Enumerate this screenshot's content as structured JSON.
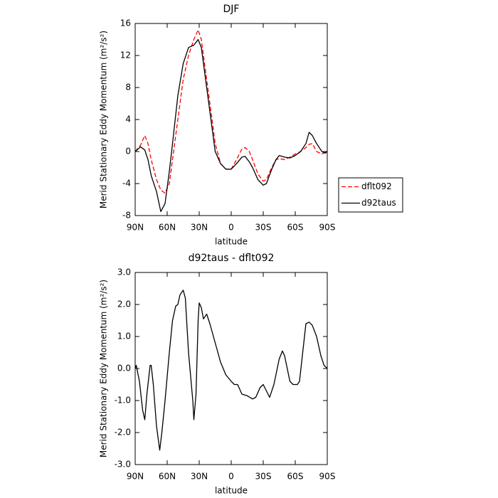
{
  "chart_data": [
    {
      "type": "line",
      "title": "DJF",
      "x_label": "latitude",
      "y_label": "Merid Stationary Eddy Momentum (m²/s²)",
      "x": [
        90,
        85,
        81,
        78,
        75,
        70,
        66,
        62,
        58,
        55,
        50,
        45,
        40,
        35,
        31,
        28,
        25,
        20,
        15,
        10,
        5,
        0,
        -5,
        -10,
        -13,
        -17,
        -20,
        -25,
        -30,
        -33,
        -38,
        -42,
        -45,
        -50,
        -55,
        -60,
        -65,
        -70,
        -73,
        -76,
        -80,
        -85,
        -88,
        -90
      ],
      "series": [
        {
          "name": "dflt092",
          "color": "#ff0000",
          "style": "dashed",
          "values": [
            0,
            0.8,
            2.0,
            1.0,
            -1,
            -3.5,
            -4.8,
            -5.2,
            -4,
            -1,
            4,
            9,
            12,
            14,
            15.2,
            14,
            11,
            6,
            1,
            -1.5,
            -2.2,
            -2.2,
            -1,
            0.3,
            0.5,
            0,
            -1,
            -2.8,
            -3.7,
            -3.5,
            -2,
            -1,
            -0.9,
            -1,
            -0.7,
            -0.3,
            0,
            0.5,
            0.9,
            1.0,
            0,
            -0.3,
            -0.1,
            0
          ]
        },
        {
          "name": "d92taus",
          "color": "#000000",
          "style": "solid",
          "values": [
            0,
            0.6,
            0.2,
            -1,
            -3,
            -5,
            -7.5,
            -6.5,
            -2.5,
            1,
            7,
            11,
            13,
            13.3,
            14,
            13,
            10,
            5,
            0,
            -1.5,
            -2.2,
            -2.2,
            -1.5,
            -0.7,
            -0.6,
            -1.3,
            -2,
            -3.5,
            -4.2,
            -4,
            -2.2,
            -1,
            -0.5,
            -0.7,
            -0.8,
            -0.5,
            0,
            1,
            2.4,
            2,
            1,
            0,
            -0.2,
            0
          ]
        }
      ],
      "xlim": [
        90,
        -90
      ],
      "xticks": [
        {
          "value": 90,
          "label": "90N"
        },
        {
          "value": 60,
          "label": "60N"
        },
        {
          "value": 30,
          "label": "30N"
        },
        0,
        {
          "value": -30,
          "label": "30S"
        },
        {
          "value": -60,
          "label": "60S"
        },
        {
          "value": -90,
          "label": "90S"
        }
      ],
      "ylim": [
        -8,
        16
      ],
      "yticks": [
        -8,
        -4,
        0,
        4,
        8,
        12,
        16
      ],
      "legend": "right"
    },
    {
      "type": "line",
      "title": "d92taus - dflt092",
      "x_label": "latitude",
      "y_label": "Merid Stationary Eddy Momentum (m²/s²)",
      "x": [
        90,
        89,
        86,
        83,
        81,
        79,
        76,
        75,
        73,
        70,
        67,
        65,
        62,
        58,
        55,
        52,
        50,
        48,
        45,
        43,
        40,
        36,
        35,
        33,
        31,
        30,
        28,
        26,
        23,
        20,
        15,
        10,
        5,
        0,
        -3,
        -6,
        -10,
        -15,
        -20,
        -23,
        -27,
        -30,
        -33,
        -36,
        -40,
        -45,
        -48,
        -50,
        -55,
        -58,
        -62,
        -64,
        -67,
        -70,
        -73,
        -76,
        -80,
        -84,
        -87,
        -90
      ],
      "series": [
        {
          "name": "d92taus - dflt092",
          "color": "#000000",
          "style": "solid",
          "values": [
            0,
            0.1,
            -0.4,
            -1.3,
            -1.6,
            -0.8,
            0.1,
            0.1,
            -0.5,
            -1.8,
            -2.55,
            -2,
            -1,
            0.5,
            1.5,
            1.95,
            2.0,
            2.3,
            2.45,
            2.2,
            0.5,
            -1,
            -1.6,
            -0.8,
            1.5,
            2.05,
            1.9,
            1.55,
            1.7,
            1.4,
            0.8,
            0.2,
            -0.2,
            -0.4,
            -0.5,
            -0.5,
            -0.8,
            -0.85,
            -0.95,
            -0.9,
            -0.6,
            -0.5,
            -0.7,
            -0.9,
            -0.5,
            0.3,
            0.55,
            0.4,
            -0.4,
            -0.5,
            -0.5,
            -0.4,
            0.5,
            1.4,
            1.45,
            1.35,
            1.0,
            0.4,
            0.1,
            0
          ]
        }
      ],
      "xlim": [
        90,
        -90
      ],
      "xticks": [
        {
          "value": 90,
          "label": "90N"
        },
        {
          "value": 60,
          "label": "60N"
        },
        {
          "value": 30,
          "label": "30N"
        },
        0,
        {
          "value": -30,
          "label": "30S"
        },
        {
          "value": -60,
          "label": "60S"
        },
        {
          "value": -90,
          "label": "90S"
        }
      ],
      "ylim": [
        -3,
        3
      ],
      "yticks": [
        {
          "value": -3,
          "label": "-3.0"
        },
        {
          "value": -2,
          "label": "-2.0"
        },
        {
          "value": -1,
          "label": "-1.0"
        },
        {
          "value": 0,
          "label": "0.0"
        },
        {
          "value": 1,
          "label": "1.0"
        },
        {
          "value": 2,
          "label": "2.0"
        },
        {
          "value": 3,
          "label": "3.0"
        }
      ]
    }
  ]
}
